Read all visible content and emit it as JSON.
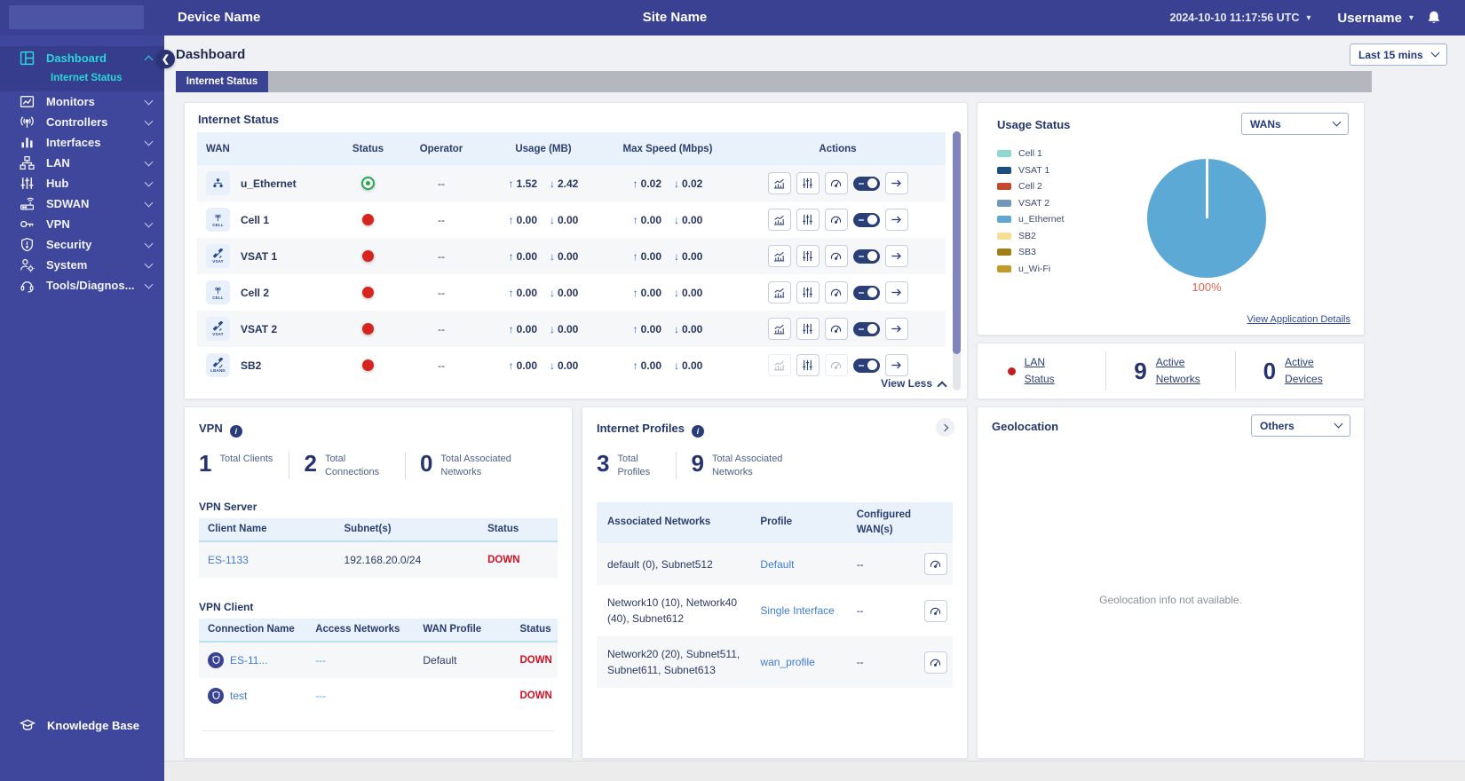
{
  "header": {
    "device_name": "Device Name",
    "site_name": "Site Name",
    "datetime": "2024-10-10 11:17:56 UTC",
    "username": "Username"
  },
  "sidebar": {
    "items": [
      {
        "id": "dashboard",
        "label": "Dashboard",
        "icon": "dashboard-icon",
        "active": true,
        "expanded": true
      },
      {
        "id": "monitors",
        "label": "Monitors",
        "icon": "monitors-icon",
        "active": false,
        "expanded": false
      },
      {
        "id": "controllers",
        "label": "Controllers",
        "icon": "controllers-icon",
        "active": false,
        "expanded": false
      },
      {
        "id": "interfaces",
        "label": "Interfaces",
        "icon": "interfaces-icon",
        "active": false,
        "expanded": false
      },
      {
        "id": "lan",
        "label": "LAN",
        "icon": "lan-icon",
        "active": false,
        "expanded": false
      },
      {
        "id": "hub",
        "label": "Hub",
        "icon": "hub-icon",
        "active": false,
        "expanded": false
      },
      {
        "id": "sdwan",
        "label": "SDWAN",
        "icon": "sdwan-icon",
        "active": false,
        "expanded": false
      },
      {
        "id": "vpn",
        "label": "VPN",
        "icon": "vpn-icon",
        "active": false,
        "expanded": false
      },
      {
        "id": "security",
        "label": "Security",
        "icon": "security-icon",
        "active": false,
        "expanded": false
      },
      {
        "id": "system",
        "label": "System",
        "icon": "system-icon",
        "active": false,
        "expanded": false
      },
      {
        "id": "tools",
        "label": "Tools/Diagnos...",
        "icon": "tools-icon",
        "active": false,
        "expanded": false
      }
    ],
    "active_subitem": "Internet Status",
    "knowledge_base": "Knowledge Base"
  },
  "page": {
    "title": "Dashboard",
    "time_filter": "Last 15 mins",
    "tab": "Internet Status"
  },
  "internet_status": {
    "title": "Internet Status",
    "columns": [
      "WAN",
      "Status",
      "Operator",
      "Usage (MB)",
      "Max Speed (Mbps)",
      "Actions"
    ],
    "rows": [
      {
        "name": "u_Ethernet",
        "icon": "ethernet-icon",
        "icon_label": "",
        "status": "up",
        "operator": "--",
        "usage_up": "1.52",
        "usage_down": "2.42",
        "speed_up": "0.02",
        "speed_down": "0.02",
        "disabled_actions": []
      },
      {
        "name": "Cell 1",
        "icon": "cell-icon",
        "icon_label": "CELL",
        "status": "down",
        "operator": "--",
        "usage_up": "0.00",
        "usage_down": "0.00",
        "speed_up": "0.00",
        "speed_down": "0.00",
        "disabled_actions": []
      },
      {
        "name": "VSAT 1",
        "icon": "vsat-icon",
        "icon_label": "VSAT",
        "status": "down",
        "operator": "--",
        "usage_up": "0.00",
        "usage_down": "0.00",
        "speed_up": "0.00",
        "speed_down": "0.00",
        "disabled_actions": []
      },
      {
        "name": "Cell 2",
        "icon": "cell-icon",
        "icon_label": "CELL",
        "status": "down",
        "operator": "--",
        "usage_up": "0.00",
        "usage_down": "0.00",
        "speed_up": "0.00",
        "speed_down": "0.00",
        "disabled_actions": []
      },
      {
        "name": "VSAT 2",
        "icon": "vsat-icon",
        "icon_label": "VSAT",
        "status": "down",
        "operator": "--",
        "usage_up": "0.00",
        "usage_down": "0.00",
        "speed_up": "0.00",
        "speed_down": "0.00",
        "disabled_actions": []
      },
      {
        "name": "SB2",
        "icon": "lband-icon",
        "icon_label": "LBAND",
        "status": "down",
        "operator": "--",
        "usage_up": "0.00",
        "usage_down": "0.00",
        "speed_up": "0.00",
        "speed_down": "0.00",
        "disabled_actions": [
          "chart",
          "gauge"
        ]
      }
    ],
    "actions": [
      "chart",
      "sliders",
      "gauge",
      "toggle",
      "arrow"
    ],
    "view_less": "View Less"
  },
  "usage_status": {
    "title": "Usage Status",
    "filter": "WANs",
    "legend": [
      {
        "label": "Cell 1",
        "color": "#8FD8D2"
      },
      {
        "label": "VSAT 1",
        "color": "#1C4E80"
      },
      {
        "label": "Cell 2",
        "color": "#C8472F"
      },
      {
        "label": "VSAT 2",
        "color": "#7097BC"
      },
      {
        "label": "u_Ethernet",
        "color": "#5FA8D3"
      },
      {
        "label": "SB2",
        "color": "#F6DE97"
      },
      {
        "label": "SB3",
        "color": "#9E7F18"
      },
      {
        "label": "u_Wi-Fi",
        "color": "#C29B27"
      }
    ],
    "chart_data": {
      "type": "pie",
      "labels": [
        "Cell 1",
        "VSAT 1",
        "Cell 2",
        "VSAT 2",
        "u_Ethernet",
        "SB2",
        "SB3",
        "u_Wi-Fi"
      ],
      "values": [
        0,
        0,
        0,
        0,
        100,
        0,
        0,
        0
      ],
      "title": "Usage Status",
      "annotation": "100%",
      "pie_color": "#5CA9D6"
    },
    "pie_label": "100%",
    "details_link": "View Application Details"
  },
  "lan_summary": {
    "items": [
      {
        "label": "LAN Status",
        "value": "",
        "dot": "red"
      },
      {
        "label": "Active Networks",
        "value": "9",
        "dot": ""
      },
      {
        "label": "Active Devices",
        "value": "0",
        "dot": ""
      }
    ]
  },
  "vpn": {
    "title": "VPN",
    "stats": [
      {
        "value": "1",
        "label": "Total Clients"
      },
      {
        "value": "2",
        "label": "Total Connections"
      },
      {
        "value": "0",
        "label": "Total Associated Networks"
      }
    ],
    "server": {
      "title": "VPN Server",
      "columns": [
        "Client Name",
        "Subnet(s)",
        "Status"
      ],
      "rows": [
        {
          "client": "ES-1133",
          "subnets": "192.168.20.0/24",
          "status": "DOWN"
        }
      ]
    },
    "client": {
      "title": "VPN Client",
      "columns": [
        "Connection Name",
        "Access Networks",
        "WAN Profile",
        "Status"
      ],
      "rows": [
        {
          "name": "ES-11...",
          "access": "---",
          "profile": "Default",
          "status": "DOWN"
        },
        {
          "name": "test",
          "access": "---",
          "profile": "",
          "status": "DOWN"
        }
      ]
    }
  },
  "internet_profiles": {
    "title": "Internet Profiles",
    "stats": [
      {
        "value": "3",
        "label": "Total Profiles"
      },
      {
        "value": "9",
        "label": "Total Associated Networks"
      }
    ],
    "columns": [
      "Associated Networks",
      "Profile",
      "Configured WAN(s)"
    ],
    "rows": [
      {
        "networks": "default (0), Subnet512",
        "profile": "Default",
        "wans": "--"
      },
      {
        "networks": "Network10 (10), Network40 (40), Subnet612",
        "profile": "Single Interface",
        "wans": "--"
      },
      {
        "networks": "Network20 (20), Subnet511, Subnet611, Subnet613",
        "profile": "wan_profile",
        "wans": "--"
      }
    ]
  },
  "geolocation": {
    "title": "Geolocation",
    "filter": "Others",
    "message": "Geolocation info not available."
  }
}
